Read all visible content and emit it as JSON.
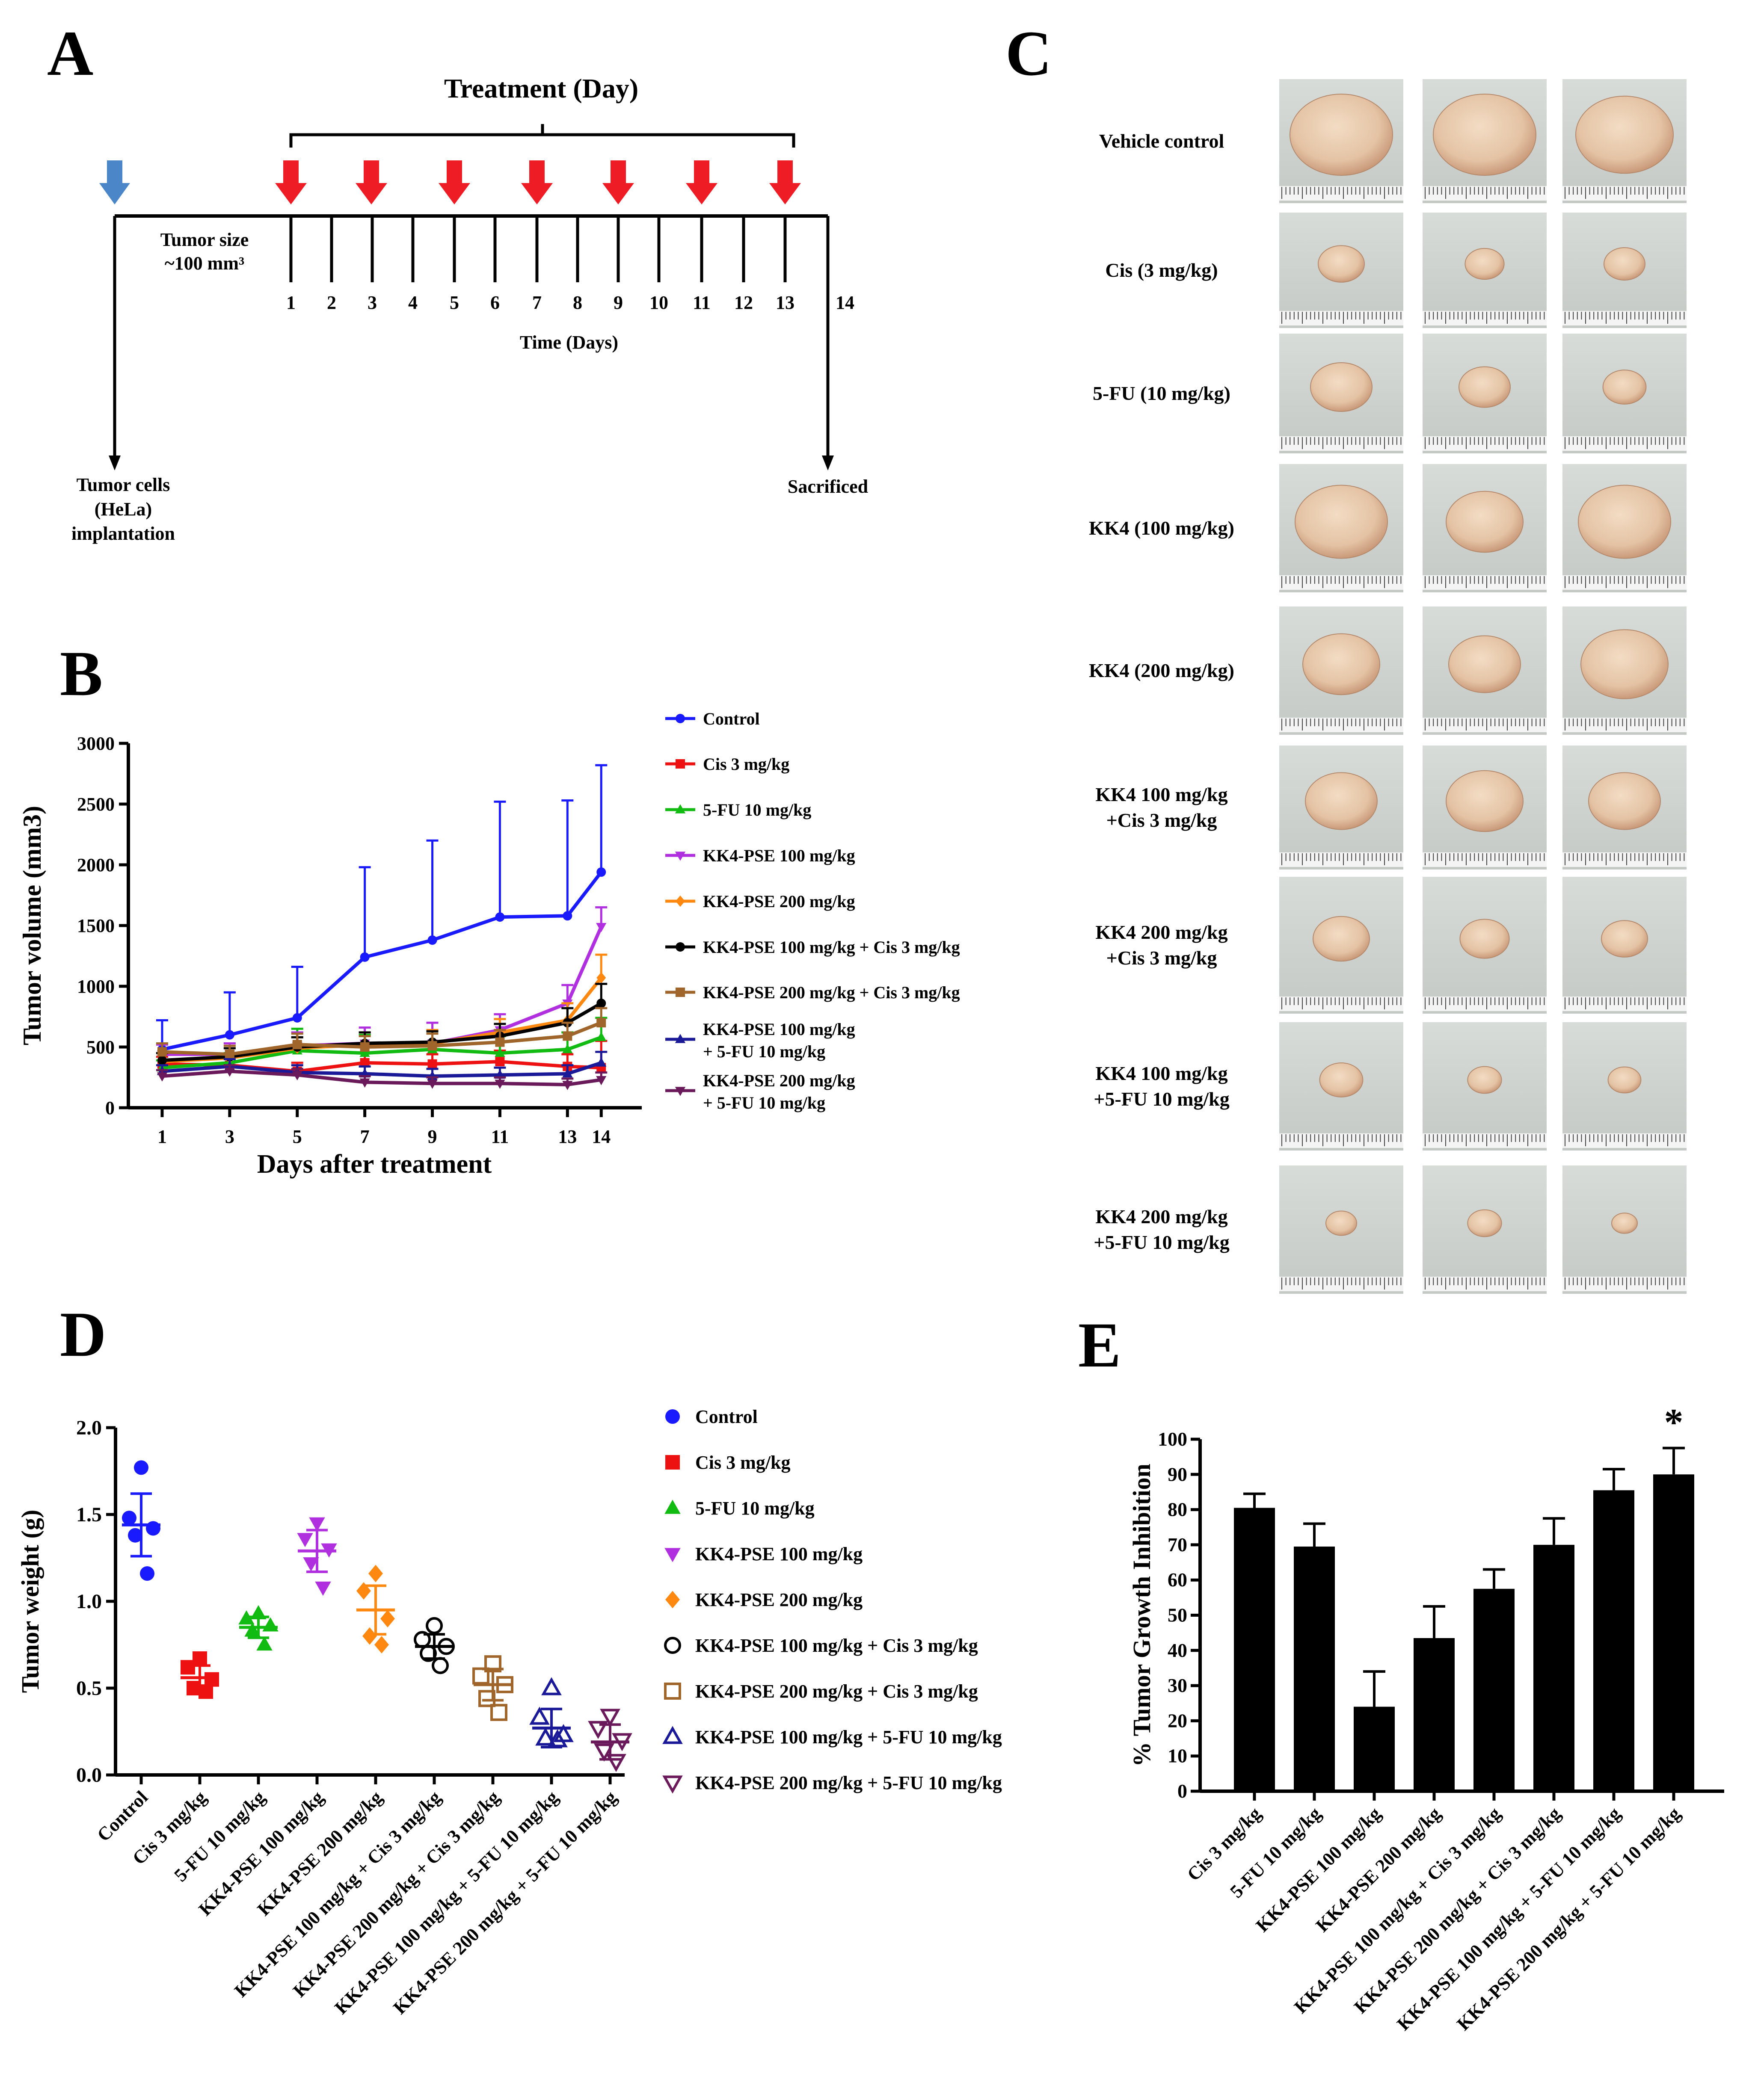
{
  "figure": {
    "panels": {
      "a": "A",
      "b": "B",
      "c": "C",
      "d": "D",
      "e": "E"
    }
  },
  "panel_a": {
    "treatment_title": "Treatment (Day)",
    "tumor_size_line1": "Tumor size",
    "tumor_size_line2": "~100 mm³",
    "day_ticks": [
      "1",
      "2",
      "3",
      "4",
      "5",
      "6",
      "7",
      "8",
      "9",
      "10",
      "11",
      "12",
      "13",
      "14"
    ],
    "time_label": "Time (Days)",
    "implant_line1": "Tumor cells",
    "implant_line2": "(HeLa)",
    "implant_line3": "implantation",
    "sacrificed": "Sacrificed",
    "colors": {
      "implant_arrow": "#4a86c8",
      "treatment_arrow": "#ee1c25"
    }
  },
  "panel_c": {
    "rows": [
      {
        "label": [
          "Vehicle control"
        ],
        "sizes": [
          1.0,
          1.0,
          0.95
        ]
      },
      {
        "label": [
          "Cis (3 mg/kg)"
        ],
        "sizes": [
          0.45,
          0.38,
          0.4
        ]
      },
      {
        "label": [
          "5-FU (10 mg/kg)"
        ],
        "sizes": [
          0.6,
          0.5,
          0.42
        ]
      },
      {
        "label": [
          "KK4 (100 mg/kg)"
        ],
        "sizes": [
          0.9,
          0.75,
          0.9
        ]
      },
      {
        "label": [
          "KK4 (200 mg/kg)"
        ],
        "sizes": [
          0.75,
          0.7,
          0.85
        ]
      },
      {
        "label": [
          "KK4 100 mg/kg",
          "+Cis 3 mg/kg"
        ],
        "sizes": [
          0.7,
          0.75,
          0.7
        ]
      },
      {
        "label": [
          "KK4 200 mg/kg",
          "+Cis 3 mg/kg"
        ],
        "sizes": [
          0.55,
          0.48,
          0.45
        ]
      },
      {
        "label": [
          "KK4 100 mg/kg",
          "+5-FU 10 mg/kg"
        ],
        "sizes": [
          0.42,
          0.33,
          0.32
        ]
      },
      {
        "label": [
          "KK4 200 mg/kg",
          "+5-FU 10 mg/kg"
        ],
        "sizes": [
          0.3,
          0.33,
          0.25
        ]
      }
    ]
  },
  "chart_data": [
    {
      "id": "B",
      "type": "line",
      "title": "",
      "xlabel": "Days after treatment",
      "ylabel": "Tumor volume (mm3)",
      "x": [
        1,
        3,
        5,
        7,
        9,
        11,
        13,
        14
      ],
      "xticks": [
        "1",
        "3",
        "5",
        "7",
        "9",
        "11",
        "13",
        "14"
      ],
      "ylim": [
        0,
        3000
      ],
      "yticks": [
        "0",
        "500",
        "1000",
        "1500",
        "2000",
        "2500",
        "3000"
      ],
      "legend": "right",
      "series": [
        {
          "name": "Control",
          "color": "#1a1aff",
          "marker": "circle",
          "values": [
            480,
            600,
            740,
            1240,
            1380,
            1570,
            1580,
            1940
          ],
          "errors": [
            240,
            350,
            420,
            740,
            820,
            950,
            950,
            880
          ]
        },
        {
          "name": "Cis 3 mg/kg",
          "color": "#ee1111",
          "marker": "square",
          "values": [
            360,
            350,
            300,
            370,
            360,
            380,
            340,
            330
          ],
          "errors": [
            60,
            70,
            70,
            80,
            80,
            90,
            100,
            220
          ]
        },
        {
          "name": "5-FU 10 mg/kg",
          "color": "#11bb11",
          "marker": "triangle",
          "values": [
            330,
            370,
            470,
            450,
            480,
            450,
            480,
            580
          ],
          "errors": [
            60,
            80,
            180,
            150,
            150,
            140,
            140,
            160
          ]
        },
        {
          "name": "KK4-PSE 100 mg/kg",
          "color": "#b030e0",
          "marker": "tri-down",
          "values": [
            440,
            440,
            510,
            530,
            530,
            640,
            860,
            1490
          ],
          "errors": [
            80,
            90,
            110,
            130,
            170,
            130,
            150,
            160
          ]
        },
        {
          "name": "KK4-PSE 200 mg/kg",
          "color": "#ff8811",
          "marker": "diamond",
          "values": [
            380,
            410,
            490,
            520,
            530,
            620,
            720,
            1070
          ],
          "errors": [
            70,
            80,
            90,
            100,
            110,
            110,
            140,
            190
          ]
        },
        {
          "name": "KK4-PSE 100 mg/kg + Cis 3 mg/kg",
          "color": "#000000",
          "marker": "circle",
          "values": [
            390,
            420,
            500,
            530,
            540,
            590,
            700,
            860
          ],
          "errors": [
            60,
            70,
            80,
            90,
            90,
            100,
            120,
            160
          ]
        },
        {
          "name": "KK4-PSE 200 mg/kg + Cis 3 mg/kg",
          "color": "#a0652a",
          "marker": "square",
          "values": [
            460,
            440,
            520,
            500,
            510,
            540,
            590,
            700
          ],
          "errors": [
            70,
            70,
            90,
            90,
            100,
            100,
            110,
            120
          ]
        },
        {
          "name": "KK4-PSE 100 mg/kg + 5-FU 10 mg/kg",
          "color": "#1a1a99",
          "marker": "triangle",
          "values": [
            300,
            340,
            290,
            280,
            260,
            270,
            280,
            370
          ],
          "errors": [
            50,
            60,
            60,
            60,
            60,
            60,
            70,
            90
          ]
        },
        {
          "name": "KK4-PSE 200 mg/kg + 5-FU 10 mg/kg",
          "color": "#6a1a5a",
          "marker": "tri-down",
          "values": [
            260,
            300,
            270,
            210,
            200,
            200,
            190,
            230
          ],
          "errors": [
            50,
            50,
            50,
            50,
            50,
            50,
            50,
            60
          ]
        }
      ]
    },
    {
      "id": "D",
      "type": "scatter",
      "title": "",
      "xlabel": "",
      "ylabel": "Tumor weight (g)",
      "ylim": [
        0,
        2.0
      ],
      "yticks": [
        "0.0",
        "0.5",
        "1.0",
        "1.5",
        "2.0"
      ],
      "legend": "right",
      "categories": [
        "Control",
        "Cis 3 mg/kg",
        "5-FU 10 mg/kg",
        "KK4-PSE 100 mg/kg",
        "KK4-PSE 200 mg/kg",
        "KK4-PSE 100 mg/kg + Cis 3 mg/kg",
        "KK4-PSE 200 mg/kg + Cis 3 mg/kg",
        "KK4-PSE 100 mg/kg + 5-FU 10 mg/kg",
        "KK4-PSE 200 mg/kg + 5-FU 10 mg/kg"
      ],
      "groups": [
        {
          "name": "Control",
          "color": "#1a1aff",
          "marker": "circle",
          "filled": true,
          "points": [
            1.77,
            1.48,
            1.42,
            1.38,
            1.16
          ],
          "mean": 1.44,
          "sd": 0.18
        },
        {
          "name": "Cis 3 mg/kg",
          "color": "#ee1111",
          "marker": "square",
          "filled": true,
          "points": [
            0.67,
            0.62,
            0.55,
            0.5,
            0.48
          ],
          "mean": 0.56,
          "sd": 0.07
        },
        {
          "name": "5-FU 10 mg/kg",
          "color": "#11bb11",
          "marker": "triangle",
          "filled": true,
          "points": [
            0.93,
            0.9,
            0.86,
            0.83,
            0.75
          ],
          "mean": 0.85,
          "sd": 0.06
        },
        {
          "name": "KK4-PSE 100 mg/kg",
          "color": "#b030e0",
          "marker": "tri-down",
          "filled": true,
          "points": [
            1.45,
            1.36,
            1.3,
            1.22,
            1.08
          ],
          "mean": 1.29,
          "sd": 0.12
        },
        {
          "name": "KK4-PSE 200 mg/kg",
          "color": "#ff8811",
          "marker": "diamond",
          "filled": true,
          "points": [
            1.16,
            1.06,
            0.9,
            0.8,
            0.75
          ],
          "mean": 0.95,
          "sd": 0.14
        },
        {
          "name": "KK4-PSE 100 mg/kg + Cis 3 mg/kg",
          "color": "#000000",
          "marker": "circle",
          "filled": false,
          "points": [
            0.86,
            0.78,
            0.74,
            0.7,
            0.63
          ],
          "mean": 0.74,
          "sd": 0.07
        },
        {
          "name": "KK4-PSE 200 mg/kg + Cis 3 mg/kg",
          "color": "#a0652a",
          "marker": "square",
          "filled": false,
          "points": [
            0.64,
            0.57,
            0.52,
            0.44,
            0.36
          ],
          "mean": 0.52,
          "sd": 0.09
        },
        {
          "name": "KK4-PSE 100 mg/kg + 5-FU 10 mg/kg",
          "color": "#1a1a99",
          "marker": "triangle",
          "filled": false,
          "points": [
            0.5,
            0.33,
            0.23,
            0.21,
            0.2
          ],
          "mean": 0.27,
          "sd": 0.11
        },
        {
          "name": "KK4-PSE 200 mg/kg + 5-FU 10 mg/kg",
          "color": "#6a1a5a",
          "marker": "tri-down",
          "filled": false,
          "points": [
            0.34,
            0.27,
            0.2,
            0.14,
            0.08
          ],
          "mean": 0.19,
          "sd": 0.1
        }
      ]
    },
    {
      "id": "E",
      "type": "bar",
      "title": "",
      "xlabel": "",
      "ylabel": "% Tumor Growth Inhibition",
      "ylim": [
        0,
        100
      ],
      "yticks": [
        "0",
        "10",
        "20",
        "30",
        "40",
        "50",
        "60",
        "70",
        "80",
        "90",
        "100"
      ],
      "categories": [
        "Cis 3 mg/kg",
        "5-FU 10 mg/kg",
        "KK4-PSE 100 mg/kg",
        "KK4-PSE 200 mg/kg",
        "KK4-PSE 100 mg/kg + Cis 3 mg/kg",
        "KK4-PSE 200 mg/kg + Cis 3 mg/kg",
        "KK4-PSE 100 mg/kg + 5-FU 10 mg/kg",
        "KK4-PSE 200 mg/kg + 5-FU 10 mg/kg"
      ],
      "values": [
        80.5,
        69.5,
        24,
        43.5,
        57.5,
        70,
        85.5,
        90
      ],
      "errors": [
        4,
        6.5,
        10,
        9,
        5.5,
        7.5,
        6,
        7.5
      ],
      "annotations": [
        {
          "category_index": 7,
          "text": "*"
        }
      ]
    }
  ]
}
